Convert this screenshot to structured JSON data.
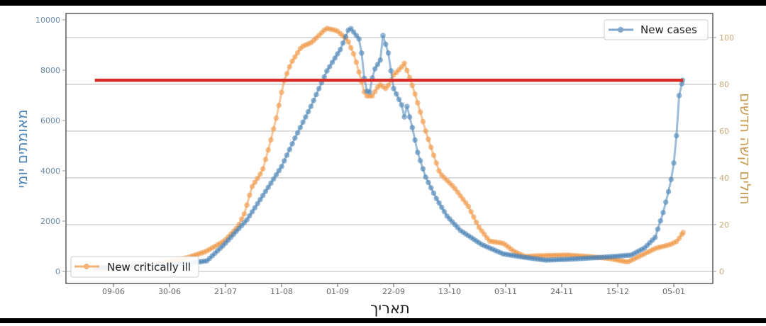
{
  "chart_data": {
    "type": "line",
    "x_unit": "days since 09-06",
    "xlabel": "תאריך",
    "ylabel_left": "מאומתים יומי",
    "ylabel_right": "חולים קשה חדשים",
    "x_ticks": [
      {
        "day": 0,
        "label": "09-06"
      },
      {
        "day": 21,
        "label": "30-06"
      },
      {
        "day": 42,
        "label": "21-07"
      },
      {
        "day": 63,
        "label": "11-08"
      },
      {
        "day": 84,
        "label": "01-09"
      },
      {
        "day": 105,
        "label": "22-09"
      },
      {
        "day": 126,
        "label": "13-10"
      },
      {
        "day": 147,
        "label": "03-11"
      },
      {
        "day": 168,
        "label": "24-11"
      },
      {
        "day": 189,
        "label": "15-12"
      },
      {
        "day": 210,
        "label": "05-01"
      }
    ],
    "ylim_left": [
      -500,
      10500
    ],
    "yticks_left": [
      "0",
      "2000",
      "4000",
      "6000",
      "8000",
      "10000"
    ],
    "ylim_right": [
      -5,
      108
    ],
    "yticks_right": [
      "0",
      "20",
      "40",
      "60",
      "80",
      "100"
    ],
    "grid": "horizontal (right axis)",
    "series": [
      {
        "name": "New cases",
        "axis": "left",
        "color": "#4f86b8",
        "legend": "top-right",
        "points": [
          [
            -7,
            150
          ],
          [
            10,
            200
          ],
          [
            20,
            250
          ],
          [
            30,
            350
          ],
          [
            35,
            420
          ],
          [
            41.5,
            1070
          ],
          [
            50,
            2050
          ],
          [
            57,
            3180
          ],
          [
            63,
            4170
          ],
          [
            68,
            5300
          ],
          [
            74,
            6560
          ],
          [
            80,
            7970
          ],
          [
            85,
            8820
          ],
          [
            88.5,
            9720
          ],
          [
            92,
            9240
          ],
          [
            93,
            8680
          ],
          [
            94.5,
            7180
          ],
          [
            96,
            7130
          ],
          [
            97.5,
            7970
          ],
          [
            100,
            8400
          ],
          [
            101,
            9380
          ],
          [
            103,
            8680
          ],
          [
            105,
            7270
          ],
          [
            108,
            6620
          ],
          [
            109,
            6140
          ],
          [
            110,
            6560
          ],
          [
            112,
            5720
          ],
          [
            114,
            4730
          ],
          [
            117,
            3750
          ],
          [
            121,
            2900
          ],
          [
            125,
            2200
          ],
          [
            130,
            1630
          ],
          [
            138,
            1070
          ],
          [
            146,
            700
          ],
          [
            154,
            560
          ],
          [
            162,
            450
          ],
          [
            170,
            480
          ],
          [
            183,
            560
          ],
          [
            194,
            650
          ],
          [
            199,
            930
          ],
          [
            203,
            1350
          ],
          [
            206,
            2340
          ],
          [
            208.7,
            3460
          ],
          [
            210,
            4310
          ],
          [
            211.3,
            5720
          ],
          [
            212,
            6990
          ],
          [
            213.3,
            7600
          ]
        ]
      },
      {
        "name": "New critically ill",
        "axis": "right",
        "color": "#f0994a",
        "legend": "bottom-left",
        "points": [
          [
            -7,
            1
          ],
          [
            10,
            2
          ],
          [
            20,
            4
          ],
          [
            28,
            6
          ],
          [
            34.6,
            8.5
          ],
          [
            41.5,
            13
          ],
          [
            46.5,
            19
          ],
          [
            49.2,
            25
          ],
          [
            51.8,
            36
          ],
          [
            55.8,
            43
          ],
          [
            58.5,
            54
          ],
          [
            61.1,
            66
          ],
          [
            63.8,
            81
          ],
          [
            66.5,
            89
          ],
          [
            70.4,
            96
          ],
          [
            74.4,
            98
          ],
          [
            79.7,
            104
          ],
          [
            83.7,
            103
          ],
          [
            87.7,
            99
          ],
          [
            90.4,
            92
          ],
          [
            93,
            81
          ],
          [
            94.4,
            75
          ],
          [
            97,
            75
          ],
          [
            99.7,
            80
          ],
          [
            102.3,
            78
          ],
          [
            105,
            84
          ],
          [
            107.7,
            87
          ],
          [
            109,
            89
          ],
          [
            111.6,
            81
          ],
          [
            114.3,
            71
          ],
          [
            117,
            60
          ],
          [
            119.6,
            51
          ],
          [
            122.3,
            42
          ],
          [
            127.6,
            36
          ],
          [
            132.9,
            28
          ],
          [
            136.9,
            19
          ],
          [
            140.9,
            13
          ],
          [
            146.2,
            12
          ],
          [
            150.2,
            8.5
          ],
          [
            154.2,
            6.4
          ],
          [
            159.5,
            6.7
          ],
          [
            170,
            7
          ],
          [
            178,
            6.4
          ],
          [
            186,
            5.5
          ],
          [
            192.7,
            4
          ],
          [
            198,
            7
          ],
          [
            203.4,
            10
          ],
          [
            208.7,
            11.5
          ],
          [
            211.3,
            13
          ],
          [
            213.5,
            16.7
          ]
        ]
      }
    ],
    "reference_line": {
      "color": "#d62f2a",
      "value_left": 7600,
      "from_day": -7,
      "to_day": 213.5
    }
  }
}
